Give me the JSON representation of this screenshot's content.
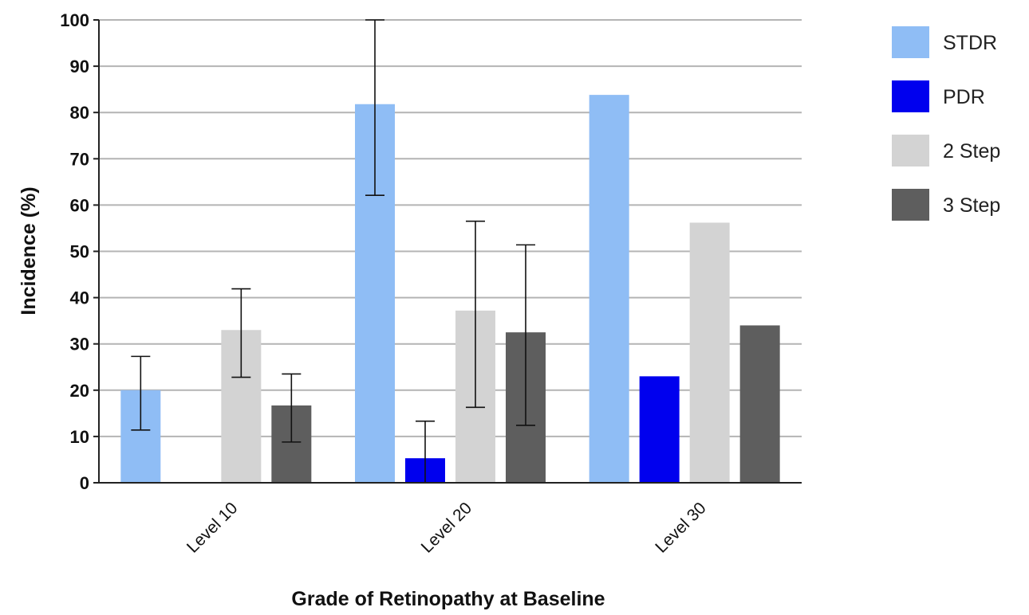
{
  "chart_data": {
    "type": "bar",
    "categories": [
      "Level 10",
      "Level 20",
      "Level 30"
    ],
    "series": [
      {
        "name": "STDR",
        "values": [
          20,
          81.8,
          83.8
        ],
        "err_low": [
          11.4,
          62.1,
          null
        ],
        "err_high": [
          27.3,
          100,
          null
        ],
        "color": "#8fbdf5"
      },
      {
        "name": "PDR",
        "values": [
          0,
          5.3,
          23
        ],
        "err_low": [
          null,
          0,
          null
        ],
        "err_high": [
          null,
          13.3,
          null
        ],
        "color": "#0000ee"
      },
      {
        "name": "2 Step",
        "values": [
          33,
          37.2,
          56.2
        ],
        "err_low": [
          22.8,
          16.3,
          null
        ],
        "err_high": [
          41.9,
          56.5,
          null
        ],
        "color": "#d3d3d3"
      },
      {
        "name": "3 Step",
        "values": [
          16.7,
          32.5,
          34
        ],
        "err_low": [
          8.8,
          12.4,
          null
        ],
        "err_high": [
          23.5,
          51.4,
          null
        ],
        "color": "#5e5e5e"
      }
    ],
    "xlabel": "Grade of Retinopathy at Baseline",
    "ylabel": "Incidence (%)",
    "ylim": [
      0,
      100
    ],
    "yticks": [
      0,
      10,
      20,
      30,
      40,
      50,
      60,
      70,
      80,
      90,
      100
    ],
    "grid": true,
    "legend_position": "right"
  }
}
